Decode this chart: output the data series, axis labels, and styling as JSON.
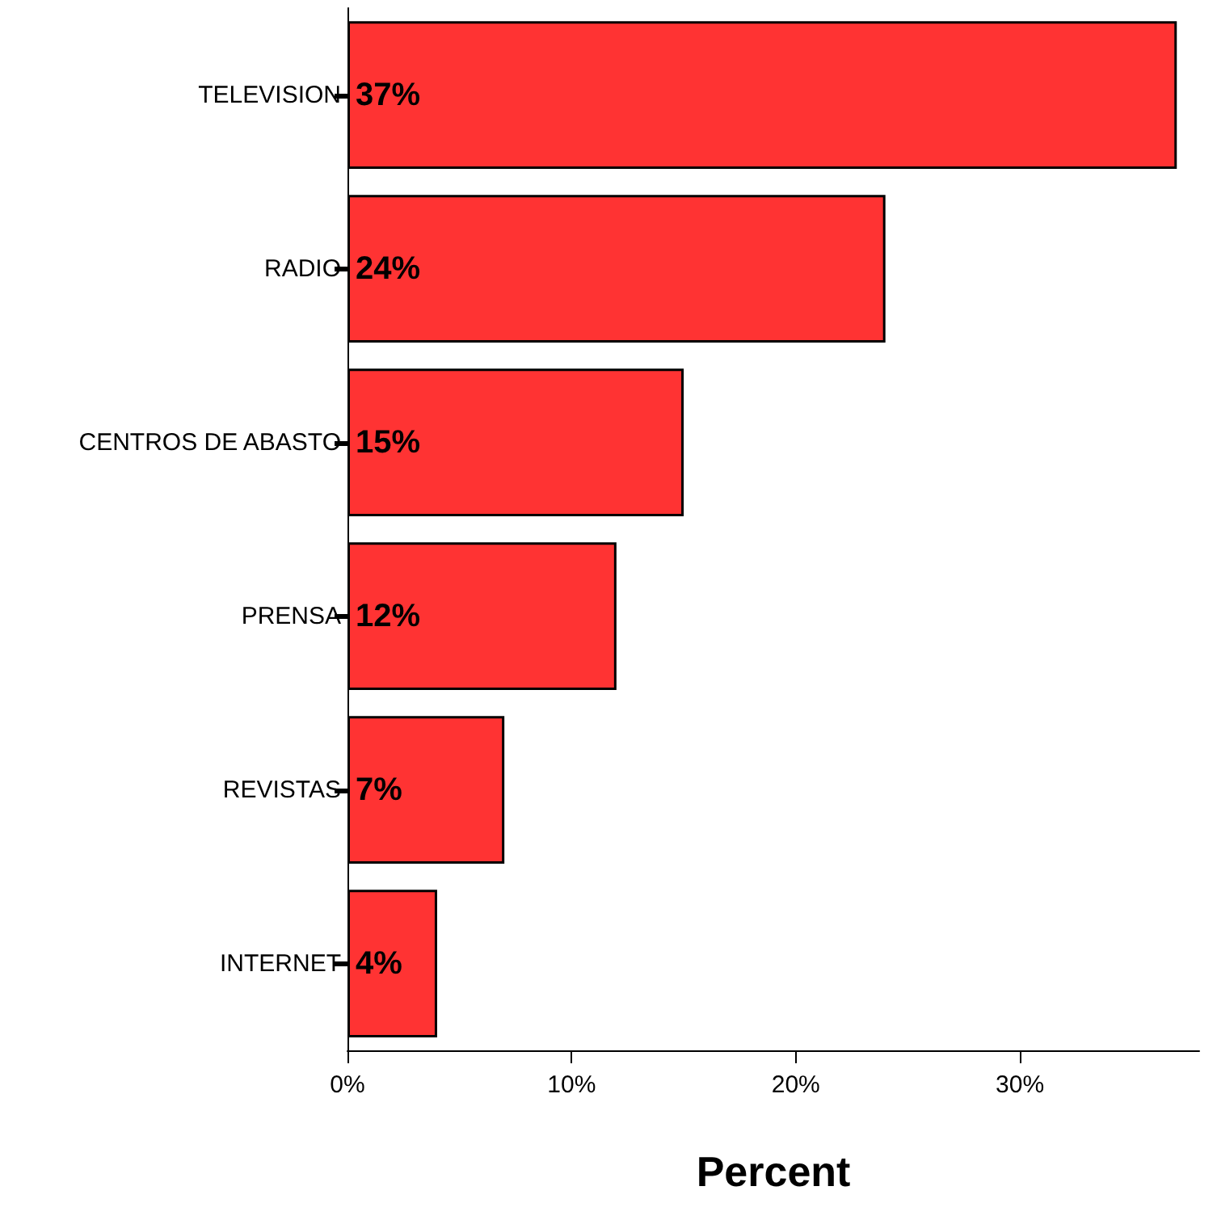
{
  "chart_data": {
    "type": "bar",
    "orientation": "horizontal",
    "xlabel": "Percent",
    "categories": [
      "TELEVISION",
      "RADIO",
      "CENTROS DE ABASTO",
      "PRENSA",
      "REVISTAS",
      "INTERNET"
    ],
    "values": [
      37,
      24,
      15,
      12,
      7,
      4
    ],
    "value_labels": [
      "37%",
      "24%",
      "15%",
      "12%",
      "7%",
      "4%"
    ],
    "color": "#ff3333",
    "xlim": [
      0,
      38
    ],
    "xticks": [
      {
        "value": 0,
        "label": "0%"
      },
      {
        "value": 10,
        "label": "10%"
      },
      {
        "value": 20,
        "label": "20%"
      },
      {
        "value": 30,
        "label": "30%"
      }
    ]
  }
}
